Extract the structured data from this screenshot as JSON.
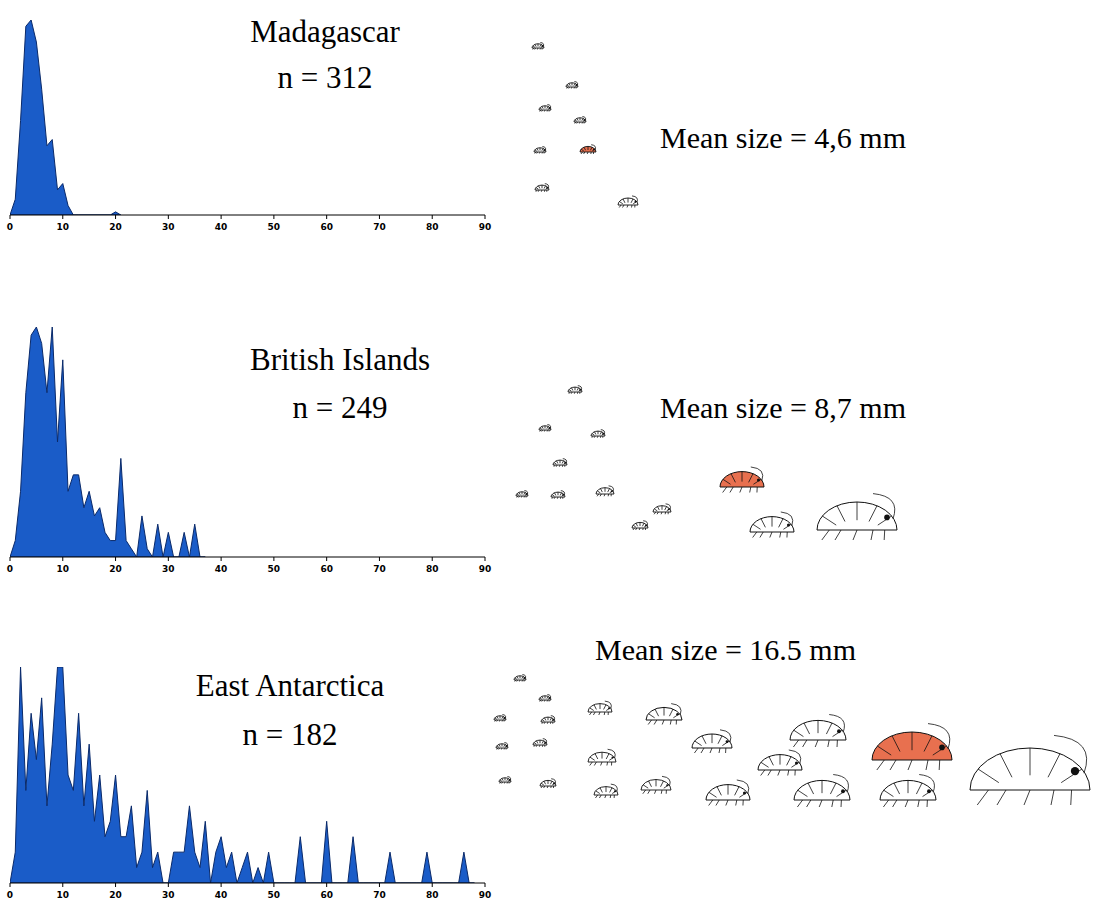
{
  "chart_data": [
    {
      "type": "area",
      "title": "Madagascar",
      "subtitle": "n = 312",
      "annotations": [
        "Mean size = 4,6 mm"
      ],
      "x": [
        0,
        1,
        2,
        3,
        4,
        5,
        6,
        7,
        8,
        9,
        10,
        11,
        12,
        13,
        19,
        20,
        21
      ],
      "values": [
        0,
        5,
        30,
        60,
        62,
        55,
        40,
        22,
        24,
        8,
        10,
        3,
        0,
        0,
        0,
        1,
        0
      ],
      "color": "#1a5cc8",
      "xlim": [
        0,
        90
      ],
      "xticks": [
        0,
        10,
        20,
        30,
        40,
        50,
        60,
        70,
        80,
        90
      ],
      "ylim": [
        0,
        62
      ],
      "tick_labels": "x"
    },
    {
      "type": "area",
      "title": "British Islands",
      "subtitle": "n = 249",
      "annotations": [
        "Mean size = 8,7 mm"
      ],
      "x": [
        0,
        1,
        2,
        3,
        4,
        5,
        6,
        7,
        8,
        9,
        10,
        11,
        12,
        13,
        14,
        15,
        16,
        17,
        18,
        19,
        20,
        21,
        22,
        23,
        24,
        25,
        26,
        27,
        28,
        29,
        30,
        31,
        32,
        33,
        34,
        35,
        36,
        37
      ],
      "values": [
        0,
        2,
        8,
        20,
        27,
        28,
        26,
        20,
        28,
        14,
        24,
        8,
        10,
        10,
        6,
        8,
        5,
        6,
        3,
        2,
        2,
        12,
        2,
        1,
        0,
        5,
        1,
        0,
        4,
        0,
        3,
        0,
        0,
        3,
        0,
        4,
        0,
        0
      ],
      "color": "#1a5cc8",
      "xlim": [
        0,
        90
      ],
      "xticks": [
        0,
        10,
        20,
        30,
        40,
        50,
        60,
        70,
        80,
        90
      ],
      "ylim": [
        0,
        28
      ],
      "tick_labels": "x"
    },
    {
      "type": "area",
      "title": "East Antarctica",
      "subtitle": "n = 182",
      "annotations": [
        "Mean size = 16.5 mm"
      ],
      "x": [
        0,
        1,
        2,
        3,
        4,
        5,
        6,
        7,
        8,
        9,
        10,
        11,
        12,
        13,
        14,
        15,
        16,
        17,
        18,
        19,
        20,
        21,
        22,
        23,
        24,
        25,
        26,
        27,
        28,
        29,
        30,
        31,
        32,
        33,
        34,
        35,
        36,
        37,
        38,
        39,
        40,
        41,
        42,
        43,
        44,
        45,
        46,
        47,
        48,
        49,
        50,
        51,
        52,
        53,
        54,
        55,
        56,
        57,
        58,
        59,
        60,
        61,
        62,
        63,
        64,
        65,
        66,
        67,
        68,
        69,
        70,
        71,
        72,
        73,
        74,
        75,
        76,
        77,
        78,
        79,
        80,
        81,
        82,
        83,
        84,
        85,
        86,
        87,
        88
      ],
      "values": [
        0,
        2,
        14,
        6,
        11,
        8,
        12,
        5,
        9,
        14,
        14,
        7,
        6,
        11,
        5,
        9,
        4,
        7,
        3,
        4,
        7,
        3,
        3,
        5,
        1,
        2,
        6,
        1,
        2,
        0,
        0,
        2,
        2,
        2,
        5,
        2,
        1,
        4,
        0,
        2,
        3,
        1,
        2,
        0,
        1,
        2,
        0,
        1,
        0,
        2,
        0,
        0,
        0,
        0,
        0,
        3,
        0,
        0,
        0,
        0,
        4,
        0,
        0,
        0,
        0,
        3,
        0,
        0,
        0,
        0,
        0,
        0,
        2,
        0,
        0,
        0,
        0,
        0,
        0,
        2,
        0,
        0,
        0,
        0,
        0,
        0,
        2,
        0,
        0
      ],
      "color": "#1a5cc8",
      "xlim": [
        0,
        90
      ],
      "xticks": [
        0,
        10,
        20,
        30,
        40,
        50,
        60,
        70,
        80,
        90
      ],
      "ylim": [
        0,
        14
      ],
      "tick_labels": "x"
    }
  ]
}
